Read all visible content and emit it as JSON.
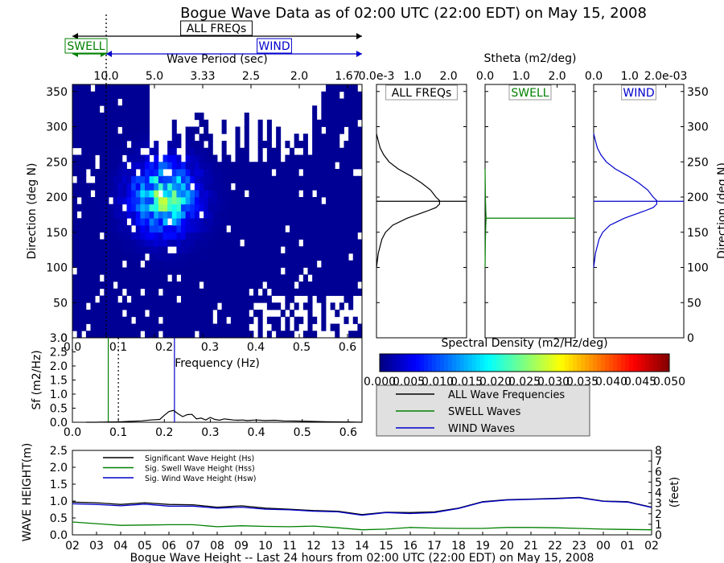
{
  "title": "Bogue Wave Data as of 02:00 UTC (22:00 EDT) on May 15, 2008",
  "chart_data": [
    {
      "id": "directional_spectrum",
      "type": "heatmap",
      "xlabel": "Frequency (Hz)",
      "ylabel": "Direction (deg N)",
      "top_axis_label": "Wave Period (sec)",
      "xlim": [
        0.03,
        0.63
      ],
      "ylim": [
        0,
        360
      ],
      "x_ticks": [
        "0.0",
        "0.1",
        "0.2",
        "0.3",
        "0.4",
        "0.5",
        "0.6"
      ],
      "y_ticks": [
        "0",
        "50",
        "100",
        "150",
        "200",
        "250",
        "300",
        "350"
      ],
      "period_ticks": [
        {
          "label": "10.0",
          "freq": 0.1
        },
        {
          "label": "5.0",
          "freq": 0.2
        },
        {
          "label": "3.33",
          "freq": 0.3
        },
        {
          "label": "2.5",
          "freq": 0.4
        },
        {
          "label": "2.0",
          "freq": 0.5
        },
        {
          "label": "1.67",
          "freq": 0.6
        }
      ],
      "band_arrows": [
        {
          "label": "ALL FREQs",
          "from": 0.03,
          "to": 0.63,
          "color": "#000000"
        },
        {
          "label": "SWELL",
          "from": 0.03,
          "to": 0.1,
          "color": "#008000"
        },
        {
          "label": "WIND",
          "from": 0.1,
          "to": 0.63,
          "color": "#0000cc"
        }
      ],
      "swell_wind_split_hz": 0.1,
      "colorbar": {
        "label": "Spectral Density (m2/Hz/deg)",
        "range": [
          0,
          0.05
        ],
        "ticks": [
          "0.000",
          "0.005",
          "0.010",
          "0.015",
          "0.020",
          "0.025",
          "0.030",
          "0.035",
          "0.040",
          "0.045",
          "0.050"
        ]
      }
    },
    {
      "id": "frequency_spectrum",
      "type": "line",
      "xlabel": "Frequency (Hz)",
      "ylabel": "Sf (m2/Hz)",
      "xlim": [
        0.0,
        0.63
      ],
      "ylim": [
        0,
        3.0
      ],
      "x_ticks": [
        "0.0",
        "0.1",
        "0.2",
        "0.3",
        "0.4",
        "0.5",
        "0.6"
      ],
      "y_ticks": [
        "0.0",
        "0.5",
        "1.0",
        "1.5",
        "2.0",
        "2.5",
        "3.0"
      ],
      "x": [
        0.03,
        0.05,
        0.08,
        0.1,
        0.12,
        0.15,
        0.17,
        0.19,
        0.2,
        0.21,
        0.22,
        0.23,
        0.24,
        0.25,
        0.26,
        0.27,
        0.28,
        0.29,
        0.3,
        0.31,
        0.32,
        0.33,
        0.34,
        0.35,
        0.36,
        0.37,
        0.38,
        0.4,
        0.42,
        0.44,
        0.46,
        0.5,
        0.55,
        0.6,
        0.63
      ],
      "y": [
        0.0,
        0.0,
        0.01,
        0.01,
        0.03,
        0.05,
        0.08,
        0.1,
        0.25,
        0.38,
        0.42,
        0.3,
        0.2,
        0.27,
        0.28,
        0.12,
        0.15,
        0.08,
        0.17,
        0.1,
        0.07,
        0.12,
        0.1,
        0.08,
        0.07,
        0.08,
        0.06,
        0.08,
        0.06,
        0.07,
        0.05,
        0.04,
        0.02,
        0.01,
        0.0
      ],
      "marker_lines": [
        {
          "name": "swell peak",
          "x": 0.078,
          "color": "#008000"
        },
        {
          "name": "wind peak",
          "x": 0.222,
          "color": "#0000cc"
        },
        {
          "name": "split",
          "x": 0.1,
          "color": "#000000",
          "style": "dotted"
        }
      ]
    },
    {
      "id": "stheta_all",
      "type": "line",
      "title": "ALL FREQs",
      "top_axis_label": "Stheta (m2/deg)",
      "xlim": [
        0,
        0.0025
      ],
      "ylim": [
        0,
        360
      ],
      "x_ticks": [
        "0.0e-3",
        "1.0",
        "2.0"
      ],
      "mean_direction_deg": 194,
      "color": "#000000",
      "direction": [
        100,
        120,
        140,
        150,
        160,
        170,
        180,
        185,
        190,
        195,
        200,
        210,
        220,
        230,
        240,
        250,
        260,
        270,
        280,
        290
      ],
      "value": [
        0.0,
        0.05,
        0.15,
        0.25,
        0.45,
        0.85,
        1.4,
        1.65,
        1.75,
        1.75,
        1.65,
        1.5,
        1.25,
        0.95,
        0.6,
        0.35,
        0.2,
        0.1,
        0.05,
        0.0
      ]
    },
    {
      "id": "stheta_swell",
      "type": "line",
      "title": "SWELL",
      "xlim": [
        0,
        0.0025
      ],
      "ylim": [
        0,
        360
      ],
      "x_ticks": [
        "0.0",
        "1.0",
        "2.0"
      ],
      "mean_direction_deg": 170,
      "color": "#008000",
      "direction": [
        100,
        140,
        160,
        170,
        180,
        200,
        240
      ],
      "value": [
        0.0,
        0.01,
        0.02,
        0.03,
        0.02,
        0.01,
        0.0
      ]
    },
    {
      "id": "stheta_wind",
      "type": "line",
      "title": "WIND",
      "xlim": [
        0,
        0.0025
      ],
      "ylim": [
        0,
        360
      ],
      "x_ticks": [
        "0.0",
        "1.0",
        "2.0e-03"
      ],
      "y_ticks": [
        "0",
        "50",
        "100",
        "150",
        "200",
        "250",
        "300",
        "350"
      ],
      "right_ylabel": "Direction (deg N)",
      "mean_direction_deg": 194,
      "color": "#0000cc",
      "direction": [
        100,
        120,
        140,
        150,
        160,
        170,
        180,
        185,
        190,
        195,
        200,
        210,
        220,
        230,
        240,
        250,
        260,
        270,
        280,
        290
      ],
      "value": [
        0.0,
        0.05,
        0.15,
        0.25,
        0.45,
        0.85,
        1.4,
        1.65,
        1.75,
        1.75,
        1.65,
        1.5,
        1.25,
        0.95,
        0.6,
        0.35,
        0.2,
        0.1,
        0.05,
        0.0
      ]
    },
    {
      "id": "wave_height_history",
      "type": "line",
      "xlabel": "Bogue Wave Height -- Last 24 hours from 02:00 UTC (22:00 EDT) on May 15, 2008",
      "ylabel": "WAVE HEIGHT(m)",
      "right_ylabel": "(feet)",
      "ylim": [
        0,
        2.5
      ],
      "y_ticks": [
        "0.0",
        "0.5",
        "1.0",
        "1.5",
        "2.0",
        "2.5"
      ],
      "right_ticks": [
        "0",
        "1",
        "2",
        "3",
        "4",
        "5",
        "6",
        "7",
        "8"
      ],
      "categories": [
        "02",
        "03",
        "04",
        "05",
        "06",
        "07",
        "08",
        "09",
        "10",
        "11",
        "12",
        "13",
        "14",
        "15",
        "16",
        "17",
        "18",
        "19",
        "20",
        "21",
        "22",
        "23",
        "00",
        "01",
        "02"
      ],
      "series": [
        {
          "name": "Significant Wave Height (Hs)",
          "color": "#000000",
          "values": [
            0.97,
            0.95,
            0.9,
            0.95,
            0.9,
            0.89,
            0.82,
            0.86,
            0.79,
            0.76,
            0.72,
            0.7,
            0.6,
            0.67,
            0.66,
            0.68,
            0.79,
            0.98,
            1.04,
            1.06,
            1.08,
            1.11,
            1.0,
            0.98,
            0.82
          ]
        },
        {
          "name": "Sig. Swell Wave Height (Hss)",
          "color": "#008000",
          "values": [
            0.38,
            0.33,
            0.28,
            0.29,
            0.3,
            0.3,
            0.24,
            0.27,
            0.25,
            0.24,
            0.26,
            0.21,
            0.15,
            0.17,
            0.22,
            0.2,
            0.19,
            0.19,
            0.22,
            0.22,
            0.21,
            0.19,
            0.17,
            0.16,
            0.15
          ]
        },
        {
          "name": "Sig. Wind Wave Height (Hsw)",
          "color": "#0000cc",
          "values": [
            0.92,
            0.9,
            0.86,
            0.91,
            0.85,
            0.85,
            0.79,
            0.82,
            0.76,
            0.74,
            0.7,
            0.68,
            0.58,
            0.66,
            0.63,
            0.66,
            0.78,
            0.97,
            1.03,
            1.05,
            1.07,
            1.1,
            0.99,
            0.97,
            0.81
          ]
        }
      ]
    }
  ],
  "spectra_legend": [
    {
      "name": "ALL Wave Frequencies",
      "color": "#000000"
    },
    {
      "name": "SWELL Waves",
      "color": "#008000"
    },
    {
      "name": "WIND Waves",
      "color": "#0000cc"
    }
  ]
}
